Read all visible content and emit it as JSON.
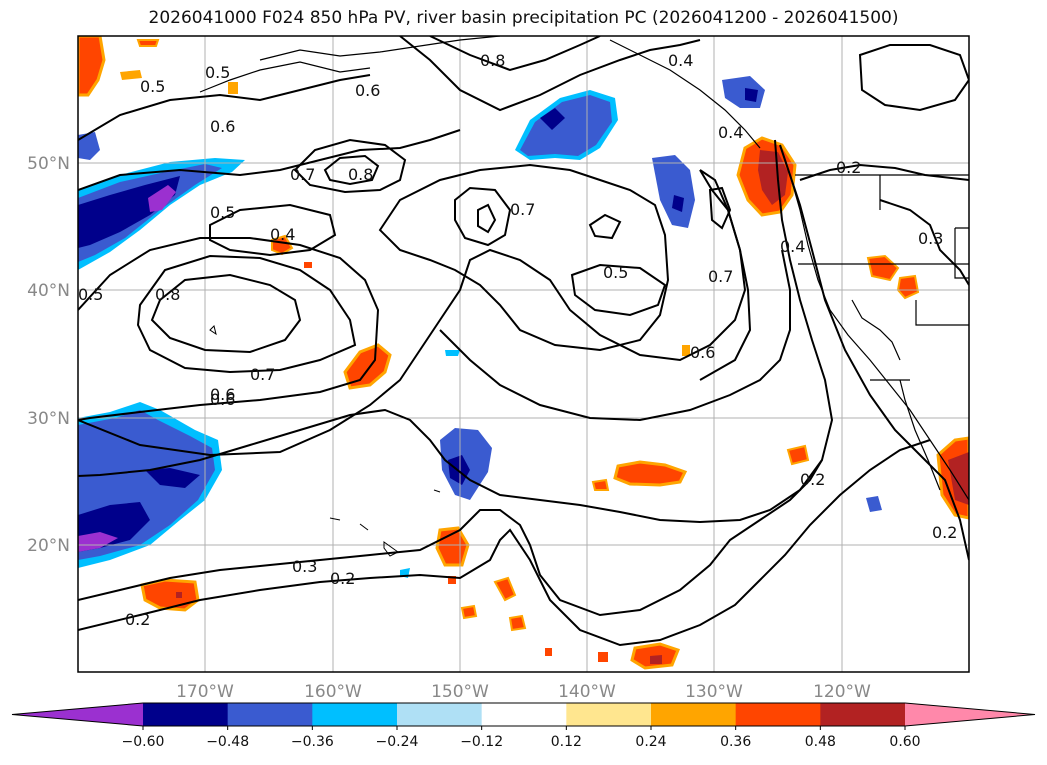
{
  "title": "2026041000 F024 850 hPa PV, river basin precipitation PC (2026041200 - 2026041500)",
  "map": {
    "projection": "PlateCarree",
    "lon_range": [
      -180,
      -110
    ],
    "lat_range": [
      10,
      60
    ],
    "lat_labels": [
      "50°N",
      "40°N",
      "30°N",
      "20°N"
    ],
    "lon_labels": [
      "170°W",
      "160°W",
      "150°W",
      "140°W",
      "130°W",
      "120°W"
    ],
    "contour_field": "850 hPa PV",
    "contour_labels": [
      "0.5",
      "0.5",
      "0.6",
      "0.6",
      "0.4",
      "0.8",
      "0.7",
      "0.8",
      "0.5",
      "0.4",
      "0.7",
      "0.5",
      "0.7",
      "0.6",
      "0.8",
      "0.4",
      "0.2",
      "0.4",
      "0.3",
      "0.6",
      "0.5",
      "0.6",
      "0.7",
      "0.3",
      "0.2",
      "0.2",
      "0.2",
      "0.2"
    ],
    "fill_field": "river basin precipitation PC"
  },
  "colorbar": {
    "ticks": [
      "−0.60",
      "−0.48",
      "−0.36",
      "−0.24",
      "−0.12",
      "0.12",
      "0.24",
      "0.36",
      "0.48",
      "0.60"
    ],
    "colors": [
      "#9b30d0",
      "#00008b",
      "#3a5bd0",
      "#00bfff",
      "#afe0f5",
      "#ffffff",
      "#ffe68f",
      "#ffa500",
      "#ff4500",
      "#b22222",
      "#ff88aa"
    ],
    "extend": "both"
  }
}
